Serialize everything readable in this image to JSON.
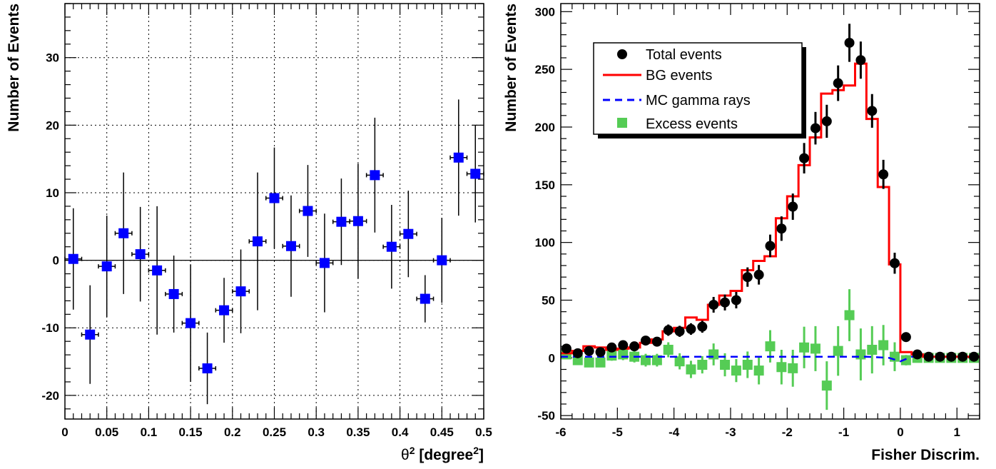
{
  "chart_data": [
    {
      "type": "scatter",
      "title": "",
      "xlabel_base": "θ",
      "xlabel_sup": "2",
      "xlabel_mid": " [degree",
      "xlabel_sup2": "2",
      "xlabel_end": "]",
      "ylabel": "Number of Events",
      "xlim": [
        0,
        0.5
      ],
      "ylim": [
        -23.5,
        38
      ],
      "grid": true,
      "xticks": [
        0,
        0.05,
        0.1,
        0.15,
        0.2,
        0.25,
        0.3,
        0.35,
        0.4,
        0.45,
        0.5
      ],
      "xtick_labels": [
        "0",
        "0.05",
        "0.1",
        "0.15",
        "0.2",
        "0.25",
        "0.3",
        "0.35",
        "0.4",
        "0.45",
        "0.5"
      ],
      "yticks": [
        -20,
        -10,
        0,
        10,
        20,
        30
      ],
      "ytick_labels": [
        "-20",
        "-10",
        "0",
        "10",
        "20",
        "30"
      ],
      "marker_color": "#0000ff",
      "series": [
        {
          "x": [
            0.01,
            0.03,
            0.05,
            0.07,
            0.09,
            0.11,
            0.13,
            0.15,
            0.17,
            0.19,
            0.21,
            0.23,
            0.25,
            0.27,
            0.29,
            0.31,
            0.33,
            0.35,
            0.37,
            0.39,
            0.41,
            0.43,
            0.45,
            0.47,
            0.49
          ],
          "y": [
            0.2,
            -11.0,
            -0.9,
            4.0,
            0.9,
            -1.5,
            -5.0,
            -9.3,
            -16.0,
            -7.4,
            -4.6,
            2.8,
            9.2,
            2.1,
            7.3,
            -0.4,
            5.7,
            5.8,
            12.6,
            2.0,
            3.9,
            -5.7,
            0.0,
            15.2,
            12.8
          ],
          "yerr": [
            7.5,
            7.3,
            7.5,
            9.0,
            7.0,
            9.5,
            5.7,
            8.7,
            5.3,
            4.8,
            6.2,
            10.2,
            7.5,
            7.5,
            6.8,
            7.3,
            6.4,
            8.5,
            8.5,
            6.2,
            6.4,
            3.5,
            6.3,
            8.6,
            7.2
          ],
          "xerr": 0.01
        }
      ]
    },
    {
      "type": "line",
      "title": "",
      "xlabel": "Fisher Discrim.",
      "ylabel": "Number of Events",
      "xlim": [
        -6,
        1.4
      ],
      "ylim": [
        -53,
        307
      ],
      "grid": false,
      "xticks": [
        -6,
        -5,
        -4,
        -3,
        -2,
        -1,
        0,
        1
      ],
      "xtick_labels": [
        "-6",
        "-5",
        "-4",
        "-3",
        "-2",
        "-1",
        "0",
        "1"
      ],
      "yticks": [
        -50,
        0,
        50,
        100,
        150,
        200,
        250,
        300
      ],
      "ytick_labels": [
        "-50",
        "0",
        "50",
        "100",
        "150",
        "200",
        "250",
        "300"
      ],
      "bin_edges": [
        -6.0,
        -5.8,
        -5.6,
        -5.4,
        -5.2,
        -5.0,
        -4.8,
        -4.6,
        -4.4,
        -4.2,
        -4.0,
        -3.8,
        -3.6,
        -3.4,
        -3.2,
        -3.0,
        -2.8,
        -2.6,
        -2.4,
        -2.2,
        -2.0,
        -1.8,
        -1.6,
        -1.4,
        -1.2,
        -1.0,
        -0.8,
        -0.6,
        -0.4,
        -0.2,
        0.0,
        0.2,
        0.4,
        0.6,
        0.8,
        1.0,
        1.2,
        1.4
      ],
      "legend": {
        "position": "top-left",
        "entries": [
          {
            "label": "Total events",
            "series": "total"
          },
          {
            "label": "BG events",
            "series": "bg"
          },
          {
            "label": "MC gamma rays",
            "series": "mc"
          },
          {
            "label": "Excess events",
            "series": "excess"
          }
        ]
      },
      "series": [
        {
          "key": "total",
          "style": "points",
          "color": "#000000",
          "x": [
            -5.9,
            -5.7,
            -5.5,
            -5.3,
            -5.1,
            -4.9,
            -4.7,
            -4.5,
            -4.3,
            -4.1,
            -3.9,
            -3.7,
            -3.5,
            -3.3,
            -3.1,
            -2.9,
            -2.7,
            -2.5,
            -2.3,
            -2.1,
            -1.9,
            -1.7,
            -1.5,
            -1.3,
            -1.1,
            -0.9,
            -0.7,
            -0.5,
            -0.3,
            -0.1,
            0.1,
            0.3,
            0.5,
            0.7,
            0.9,
            1.1,
            1.3
          ],
          "y": [
            8,
            4,
            6,
            5,
            9,
            11,
            10,
            15,
            14,
            24,
            23,
            25,
            27,
            46,
            48,
            50,
            70,
            72,
            97,
            112,
            131,
            173,
            199,
            205,
            238,
            273,
            258,
            214,
            159,
            82,
            18,
            3,
            1,
            1,
            1,
            1,
            1
          ],
          "yerr": [
            3,
            2,
            2.5,
            2.2,
            3,
            3.3,
            3.2,
            3.9,
            3.7,
            4.9,
            4.8,
            5,
            5.2,
            6.8,
            6.9,
            7.1,
            8.4,
            8.5,
            9.8,
            10.6,
            11.4,
            13.2,
            14.1,
            14.3,
            15.4,
            16.5,
            16.1,
            14.6,
            12.6,
            9.1,
            4.2,
            1.7,
            1,
            1,
            1,
            1,
            1
          ]
        },
        {
          "key": "bg",
          "style": "step",
          "color": "#ff0000",
          "values": [
            4,
            6,
            10,
            9,
            7,
            8,
            9,
            13,
            16,
            23,
            26,
            35,
            33,
            46,
            54,
            58,
            76,
            84,
            88,
            121,
            140,
            167,
            191,
            229,
            232,
            236,
            255,
            207,
            148,
            81,
            5,
            3,
            1,
            1,
            1,
            1,
            1
          ]
        },
        {
          "key": "mc",
          "style": "dashed",
          "color": "#0000ff",
          "x": [
            -6.0,
            -1.0,
            -0.6,
            -0.2,
            0.0,
            0.2,
            1.4
          ],
          "y": [
            1,
            1,
            1,
            0,
            -3,
            1,
            1
          ]
        },
        {
          "key": "excess",
          "style": "squares",
          "color": "#55cc55",
          "x": [
            -5.9,
            -5.7,
            -5.5,
            -5.3,
            -5.1,
            -4.9,
            -4.7,
            -4.5,
            -4.3,
            -4.1,
            -3.9,
            -3.7,
            -3.5,
            -3.3,
            -3.1,
            -2.9,
            -2.7,
            -2.5,
            -2.3,
            -2.1,
            -1.9,
            -1.7,
            -1.5,
            -1.3,
            -1.1,
            -0.9,
            -0.7,
            -0.5,
            -0.3,
            -0.1,
            0.1,
            0.3,
            0.5,
            0.7,
            0.9,
            1.1,
            1.3
          ],
          "y": [
            3,
            -2,
            -4,
            -4,
            2,
            3,
            1,
            -2,
            -2,
            7,
            -3,
            -10,
            -6,
            3,
            -6,
            -11,
            -6,
            -11,
            10,
            -8,
            -9,
            9,
            8,
            -24,
            6,
            37,
            3,
            7,
            11,
            1,
            -2,
            0,
            0,
            0,
            0,
            0,
            0
          ],
          "yerr": [
            4,
            4,
            4,
            4,
            4.5,
            5,
            5,
            5.5,
            5.5,
            6.5,
            7,
            7.5,
            7.5,
            9.5,
            10,
            10,
            11.5,
            12,
            14,
            15,
            16,
            18,
            19.5,
            21,
            21.5,
            22.5,
            22.5,
            20.5,
            17.5,
            12.5,
            4.5,
            2,
            1.5,
            1.5,
            1.5,
            1.5,
            1.5
          ]
        }
      ]
    }
  ]
}
